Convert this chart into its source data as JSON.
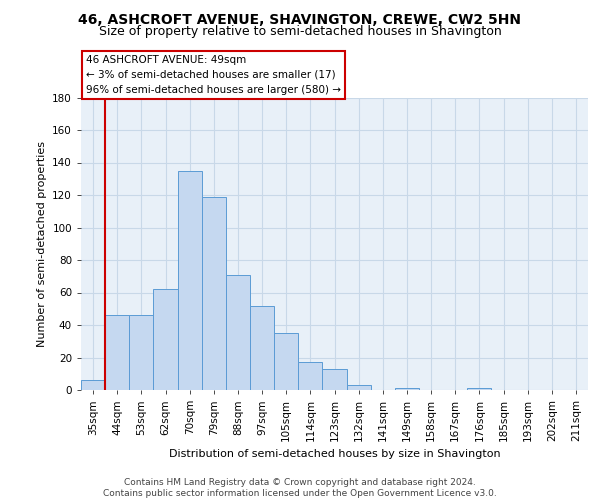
{
  "title": "46, ASHCROFT AVENUE, SHAVINGTON, CREWE, CW2 5HN",
  "subtitle": "Size of property relative to semi-detached houses in Shavington",
  "xlabel": "Distribution of semi-detached houses by size in Shavington",
  "ylabel": "Number of semi-detached properties",
  "categories": [
    "35sqm",
    "44sqm",
    "53sqm",
    "62sqm",
    "70sqm",
    "79sqm",
    "88sqm",
    "97sqm",
    "105sqm",
    "114sqm",
    "123sqm",
    "132sqm",
    "141sqm",
    "149sqm",
    "158sqm",
    "167sqm",
    "176sqm",
    "185sqm",
    "193sqm",
    "202sqm",
    "211sqm"
  ],
  "values": [
    6,
    46,
    46,
    62,
    135,
    119,
    71,
    52,
    35,
    17,
    13,
    3,
    0,
    1,
    0,
    0,
    1,
    0,
    0,
    0,
    0
  ],
  "bar_color": "#c5d8f0",
  "bar_edge_color": "#5b9bd5",
  "annotation_text": "46 ASHCROFT AVENUE: 49sqm\n← 3% of semi-detached houses are smaller (17)\n96% of semi-detached houses are larger (580) →",
  "annotation_box_color": "#ffffff",
  "annotation_box_edge": "#cc0000",
  "redline_x": 0.5,
  "ylim": [
    0,
    180
  ],
  "yticks": [
    0,
    20,
    40,
    60,
    80,
    100,
    120,
    140,
    160,
    180
  ],
  "footer": "Contains HM Land Registry data © Crown copyright and database right 2024.\nContains public sector information licensed under the Open Government Licence v3.0.",
  "bg_color": "#e8f0f8",
  "grid_color": "#c8d8e8",
  "title_fontsize": 10,
  "subtitle_fontsize": 9,
  "axis_label_fontsize": 8,
  "tick_fontsize": 7.5,
  "annotation_fontsize": 7.5,
  "footer_fontsize": 6.5
}
